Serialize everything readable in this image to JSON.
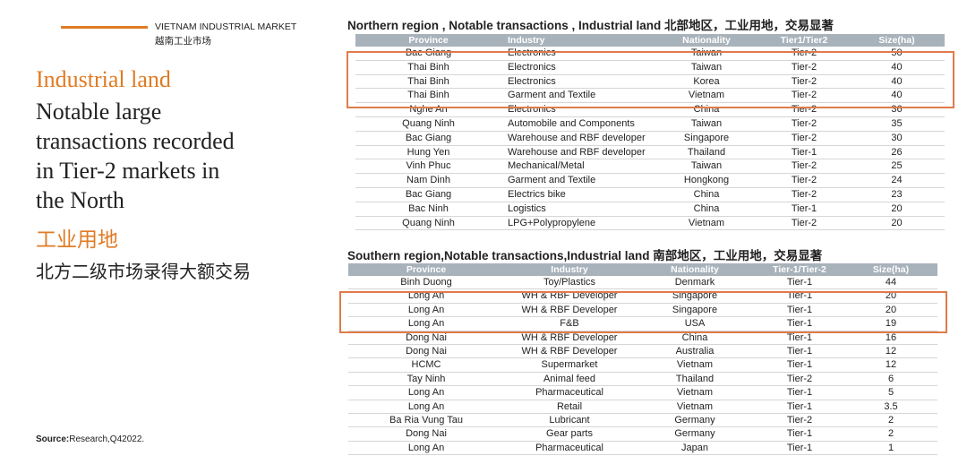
{
  "header": {
    "kicker": "VIETNAM INDUSTRIAL MARKET",
    "kicker_cn": "越南工业市场"
  },
  "left": {
    "title": "Industrial land",
    "lines": [
      "Notable large",
      "transactions recorded",
      "in Tier-2 markets in",
      "the North"
    ],
    "title_cn": "工业用地",
    "subtitle_cn": "北方二级市场录得大额交易"
  },
  "source": {
    "label": "Source:",
    "text": "Research,Q42022."
  },
  "north": {
    "title": "Northern region , Notable transactions , Industrial land 北部地区，工业用地，交易显著",
    "columns": [
      "Province",
      "Industry",
      "Nationality",
      "Tier1/Tier2",
      "Size(ha)"
    ],
    "rows": [
      [
        "Bac Giang",
        "Electronics",
        "Taiwan",
        "Tier-2",
        50
      ],
      [
        "Thai Binh",
        "Electronics",
        "Taiwan",
        "Tier-2",
        40
      ],
      [
        "Thai Binh",
        "Electronics",
        "Korea",
        "Tier-2",
        40
      ],
      [
        "Thai Binh",
        "Garment and Textile",
        "Vietnam",
        "Tier-2",
        40
      ],
      [
        "Nghe An",
        "Electronics",
        "China",
        "Tier-2",
        36
      ],
      [
        "Quang Ninh",
        "Automobile and Components",
        "Taiwan",
        "Tier-2",
        35
      ],
      [
        "Bac Giang",
        "Warehouse and RBF developer",
        "Singapore",
        "Tier-2",
        30
      ],
      [
        "Hung Yen",
        "Warehouse and RBF developer",
        "Thailand",
        "Tier-1",
        26
      ],
      [
        "Vinh Phuc",
        "Mechanical/Metal",
        "Taiwan",
        "Tier-2",
        25
      ],
      [
        "Nam Dinh",
        "Garment and Textile",
        "Hongkong",
        "Tier-2",
        24
      ],
      [
        "Bac Giang",
        "Electrics bike",
        "China",
        "Tier-2",
        23
      ],
      [
        "Bac Ninh",
        "Logistics",
        "China",
        "Tier-1",
        20
      ],
      [
        "Quang Ninh",
        "LPG+Polypropylene",
        "Vietnam",
        "Tier-2",
        20
      ]
    ]
  },
  "south": {
    "title": "Southern region,Notable transactions,Industrial land  南部地区，工业用地，交易显著",
    "columns": [
      "Province",
      "Industry",
      "Nationality",
      "Tier-1/Tier-2",
      "Size(ha)"
    ],
    "rows": [
      [
        "Binh Duong",
        "Toy/Plastics",
        "Denmark",
        "Tier-1",
        44
      ],
      [
        "Long An",
        "WH & RBF Developer",
        "Singapore",
        "Tier-1",
        20
      ],
      [
        "Long An",
        "WH & RBF Developer",
        "Singapore",
        "Tier-1",
        20
      ],
      [
        "Long An",
        "F&B",
        "USA",
        "Tier-1",
        19
      ],
      [
        "Dong Nai",
        "WH & RBF Developer",
        "China",
        "Tier-1",
        16
      ],
      [
        "Dong Nai",
        "WH & RBF Developer",
        "Australia",
        "Tier-1",
        12
      ],
      [
        "HCMC",
        "Supermarket",
        "Vietnam",
        "Tier-1",
        12
      ],
      [
        "Tay Ninh",
        "Animal feed",
        "Thailand",
        "Tier-2",
        6
      ],
      [
        "Long An",
        "Pharmaceutical",
        "Vietnam",
        "Tier-1",
        5
      ],
      [
        "Long An",
        "Retail",
        "Vietnam",
        "Tier-1",
        3.5
      ],
      [
        "Ba Ria Vung Tau",
        "Lubricant",
        "Germany",
        "Tier-2",
        2
      ],
      [
        "Dong Nai",
        "Gear parts",
        "Germany",
        "Tier-1",
        2
      ],
      [
        "Long An",
        "Pharmaceutical",
        "Japan",
        "Tier-1",
        1
      ]
    ]
  }
}
